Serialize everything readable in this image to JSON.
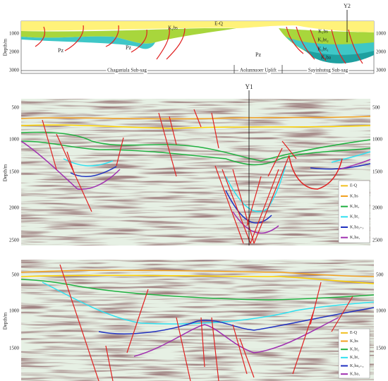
{
  "cross_section": {
    "well": "Y2",
    "depth_axis_label": "Depth/m",
    "depth_ticks": [
      "1000",
      "2000",
      "3000"
    ],
    "units": [
      "E-Q",
      "K₁bs",
      "K₁bt₂",
      "K₁bt₁",
      "K₁ba"
    ],
    "basement": "Pz",
    "structural_units": [
      "Chagantala Sub-sag",
      "Aolunnuoer Uplift",
      "Sayinhutug Sub-sag"
    ]
  },
  "seismic_profile_1": {
    "well": "Y1",
    "depth_axis_label": "Depth/m",
    "depth_ticks": [
      "500",
      "1000",
      "1500",
      "2000",
      "2500"
    ],
    "legend": [
      "E-Q",
      "K₁bs",
      "K₁bt₂",
      "K₁bt₁",
      "K₁ba₂₊₃",
      "K₁ba₁"
    ]
  },
  "seismic_profile_2": {
    "depth_axis_label": "Depth/m",
    "depth_ticks": [
      "500",
      "1000",
      "1500"
    ],
    "legend": [
      "E-Q",
      "K₁bs",
      "K₁bt₂",
      "K₁bt₁",
      "K₁ba₂₊₃",
      "K₁ba₁"
    ]
  }
}
